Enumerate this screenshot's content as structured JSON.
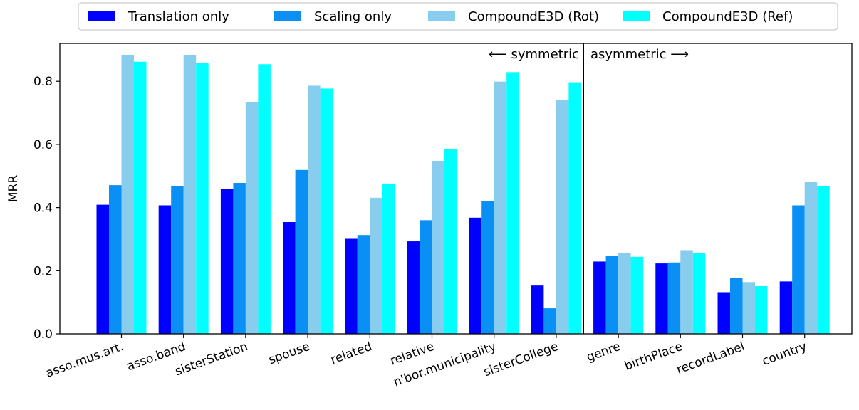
{
  "chart_data": {
    "type": "bar",
    "xlabel": "",
    "ylabel": "MRR",
    "ylim": [
      0,
      0.92
    ],
    "yticks": [
      "0.0",
      "0.2",
      "0.4",
      "0.6",
      "0.8"
    ],
    "grid": false,
    "legend_position": "top-center",
    "categories": [
      "asso.mus.art.",
      "asso.band",
      "sisterStation",
      "spouse",
      "related",
      "relative",
      "n'bor.municipality",
      "sisterCollege",
      "genre",
      "birthPlace",
      "recordLabel",
      "country"
    ],
    "series": [
      {
        "name": "Translation only",
        "color": "#0000ff",
        "values": [
          0.409,
          0.407,
          0.458,
          0.354,
          0.301,
          0.293,
          0.368,
          0.153,
          0.229,
          0.223,
          0.132,
          0.166
        ]
      },
      {
        "name": "Scaling only",
        "color": "#0a8ff5",
        "values": [
          0.471,
          0.467,
          0.478,
          0.519,
          0.313,
          0.36,
          0.421,
          0.081,
          0.247,
          0.226,
          0.176,
          0.407
        ]
      },
      {
        "name": "CompoundE3D (Rot)",
        "color": "#88ccee",
        "values": [
          0.884,
          0.884,
          0.733,
          0.786,
          0.431,
          0.548,
          0.799,
          0.741,
          0.255,
          0.265,
          0.164,
          0.482
        ]
      },
      {
        "name": "CompoundE3D (Ref)",
        "color": "#00ffff",
        "values": [
          0.862,
          0.858,
          0.854,
          0.777,
          0.476,
          0.584,
          0.829,
          0.797,
          0.244,
          0.257,
          0.151,
          0.469
        ]
      }
    ],
    "annotations": {
      "left": "⟵ symmetric",
      "right": "asymmetric ⟶"
    },
    "divider_after_category": 7
  }
}
